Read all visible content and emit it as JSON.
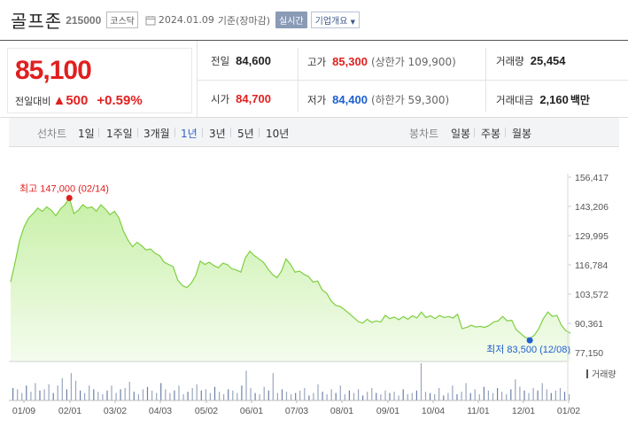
{
  "header": {
    "name": "골프존",
    "code": "215000",
    "market": "코스닥",
    "date": "2024.01.09",
    "basis": "기준(장마감)",
    "realtime_label": "실시간",
    "company_label": "기업개요"
  },
  "price": {
    "current": "85,100",
    "compare_label": "전일대비",
    "change_arrow": "▲",
    "change": "500",
    "change_rate": "+0.59%"
  },
  "stats": {
    "prev_close": {
      "label": "전일",
      "value": "84,600"
    },
    "high": {
      "label": "고가",
      "value": "85,300",
      "sub": "(상한가 109,900)"
    },
    "volume": {
      "label": "거래량",
      "value": "25,454"
    },
    "open": {
      "label": "시가",
      "value": "84,700"
    },
    "low": {
      "label": "저가",
      "value": "84,400",
      "sub": "(하한가 59,300)"
    },
    "amount": {
      "label": "거래대금",
      "value": "2,160",
      "unit": "백만"
    }
  },
  "tabs": {
    "line_label": "선차트",
    "line_periods": [
      "1일",
      "1주일",
      "3개월",
      "1년",
      "3년",
      "5년",
      "10년"
    ],
    "active_period": "1년",
    "candle_label": "봉차트",
    "candle_periods": [
      "일봉",
      "주봉",
      "월봉"
    ]
  },
  "colors": {
    "up": "#e01f1f",
    "down": "#1f5fd0",
    "line": "#7dcf3f",
    "fill_top": "#c8f0a8",
    "fill_bottom": "#f4fcee"
  },
  "chart_data": {
    "type": "area",
    "x_tick_labels": [
      "01/09",
      "02/01",
      "03/02",
      "04/03",
      "05/02",
      "06/01",
      "07/03",
      "08/01",
      "09/01",
      "10/04",
      "11/01",
      "12/01",
      "01/02"
    ],
    "y_ticks": [
      "156,417",
      "143,206",
      "129,995",
      "116,784",
      "103,572",
      "90,361",
      "77,150"
    ],
    "ylim": [
      77150,
      156417
    ],
    "max_annotation": "최고 147,000 (02/14)",
    "min_annotation": "최저 83,500 (12/08)",
    "volume_label": "거래량",
    "values": [
      109000,
      118000,
      128000,
      134000,
      138000,
      140000,
      142500,
      141000,
      143000,
      141500,
      139000,
      142000,
      144000,
      147000,
      140000,
      141500,
      144000,
      142500,
      143000,
      141000,
      144000,
      142000,
      139500,
      141000,
      138000,
      132000,
      128000,
      125000,
      127000,
      125500,
      123500,
      124000,
      122000,
      121000,
      118000,
      117000,
      116000,
      110000,
      107500,
      106500,
      108500,
      112000,
      118500,
      117000,
      118000,
      116500,
      115500,
      117500,
      117000,
      115000,
      114500,
      113500,
      120000,
      123000,
      121000,
      119500,
      118000,
      115000,
      112500,
      111000,
      114000,
      119500,
      117000,
      113500,
      114000,
      112500,
      111500,
      109000,
      109500,
      105500,
      104000,
      100500,
      98500,
      98000,
      96500,
      94800,
      93000,
      91200,
      90500,
      92200,
      90800,
      91500,
      91000,
      94000,
      92500,
      93200,
      92000,
      93500,
      92200,
      93800,
      92800,
      95500,
      93000,
      93800,
      92500,
      94000,
      93000,
      93500,
      92800,
      94500,
      88000,
      88500,
      89500,
      88700,
      89000,
      88500,
      89500,
      91000,
      91500,
      93500,
      91500,
      91800,
      87500,
      85800,
      84000,
      83500,
      85000,
      88000,
      92500,
      95500,
      93500,
      94000,
      89500,
      87000,
      86000
    ],
    "volumes": [
      10,
      9,
      6,
      12,
      7,
      14,
      8,
      9,
      13,
      6,
      12,
      18,
      9,
      22,
      16,
      8,
      6,
      12,
      9,
      7,
      5,
      8,
      12,
      6,
      9,
      10,
      15,
      7,
      5,
      9,
      11,
      8,
      6,
      14,
      9,
      6,
      8,
      12,
      5,
      7,
      10,
      13,
      8,
      9,
      6,
      11,
      7,
      5,
      9,
      8,
      6,
      12,
      24,
      10,
      6,
      5,
      11,
      8,
      22,
      6,
      9,
      7,
      5,
      6,
      8,
      10,
      4,
      6,
      13,
      7,
      5,
      9,
      6,
      12,
      5,
      8,
      6,
      9,
      4,
      7,
      10,
      6,
      5,
      8,
      6,
      7,
      4,
      9,
      5,
      6,
      8,
      30,
      7,
      6,
      5,
      10,
      4,
      6,
      12,
      5,
      7,
      14,
      6,
      9,
      5,
      11,
      8,
      6,
      10,
      7,
      5,
      9,
      17,
      11,
      8,
      6,
      10,
      8,
      14,
      9,
      6,
      8,
      10,
      7,
      5
    ]
  }
}
